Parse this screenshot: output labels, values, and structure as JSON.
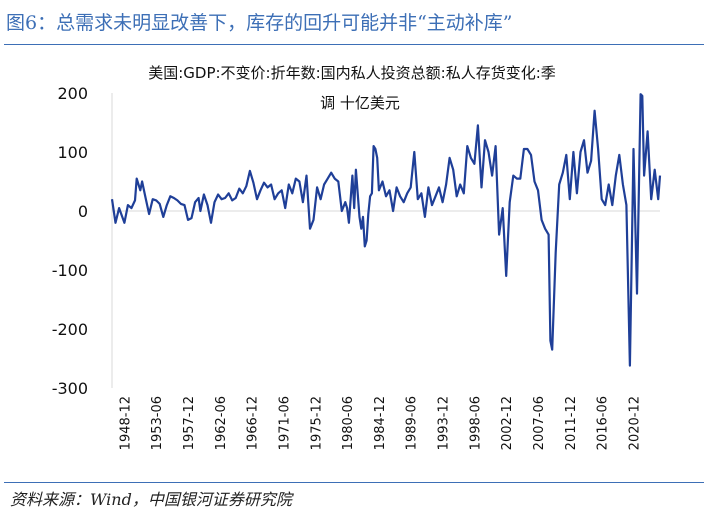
{
  "figure": {
    "title": "图6：总需求未明显改善下，库存的回升可能并非“主动补库”",
    "source": "资料来源：Wind，中国银河证券研究院"
  },
  "chart_data": {
    "type": "line",
    "title": "美国:GDP:不变价:折年数:国内私人投资总额:私人存货变化:季调 十亿美元",
    "title_lines": [
      "美国:GDP:不变价:折年数:国内私人投资总额:私人存货变化:季",
      "调 十亿美元"
    ],
    "xlabel": "",
    "ylabel": "",
    "ylim": [
      -300,
      200
    ],
    "yticks": [
      -300,
      -200,
      -100,
      0,
      100,
      200
    ],
    "xticks": [
      "1948-12",
      "1953-06",
      "1957-12",
      "1962-06",
      "1966-12",
      "1971-06",
      "1975-12",
      "1980-06",
      "1984-12",
      "1989-06",
      "1993-12",
      "1998-06",
      "2002-12",
      "2007-06",
      "2011-12",
      "2016-06",
      "2020-12"
    ],
    "x_range": [
      "1947-03",
      "2024-09"
    ],
    "grid": false,
    "legend": "none",
    "line_color": "#1f3f98",
    "series": [
      {
        "points": [
          [
            "1947-03",
            20
          ],
          [
            "1947-09",
            -20
          ],
          [
            "1948-03",
            5
          ],
          [
            "1948-12",
            -20
          ],
          [
            "1949-06",
            10
          ],
          [
            "1949-12",
            5
          ],
          [
            "1950-06",
            18
          ],
          [
            "1950-09",
            55
          ],
          [
            "1951-03",
            35
          ],
          [
            "1951-06",
            50
          ],
          [
            "1951-12",
            22
          ],
          [
            "1952-06",
            -5
          ],
          [
            "1952-12",
            20
          ],
          [
            "1953-06",
            18
          ],
          [
            "1953-12",
            12
          ],
          [
            "1954-06",
            -10
          ],
          [
            "1954-12",
            10
          ],
          [
            "1955-06",
            25
          ],
          [
            "1955-12",
            22
          ],
          [
            "1956-06",
            18
          ],
          [
            "1956-12",
            12
          ],
          [
            "1957-06",
            10
          ],
          [
            "1957-12",
            -15
          ],
          [
            "1958-06",
            -12
          ],
          [
            "1958-12",
            15
          ],
          [
            "1959-06",
            22
          ],
          [
            "1959-09",
            0
          ],
          [
            "1960-03",
            28
          ],
          [
            "1960-09",
            10
          ],
          [
            "1961-03",
            -20
          ],
          [
            "1961-09",
            15
          ],
          [
            "1962-03",
            28
          ],
          [
            "1962-09",
            20
          ],
          [
            "1963-03",
            22
          ],
          [
            "1963-09",
            30
          ],
          [
            "1964-03",
            18
          ],
          [
            "1964-09",
            22
          ],
          [
            "1965-03",
            38
          ],
          [
            "1965-09",
            30
          ],
          [
            "1966-03",
            42
          ],
          [
            "1966-09",
            68
          ],
          [
            "1967-03",
            48
          ],
          [
            "1967-09",
            20
          ],
          [
            "1968-03",
            35
          ],
          [
            "1968-09",
            48
          ],
          [
            "1969-03",
            40
          ],
          [
            "1969-09",
            45
          ],
          [
            "1970-03",
            20
          ],
          [
            "1970-09",
            30
          ],
          [
            "1971-03",
            35
          ],
          [
            "1971-09",
            5
          ],
          [
            "1972-03",
            45
          ],
          [
            "1972-09",
            30
          ],
          [
            "1973-03",
            55
          ],
          [
            "1973-09",
            50
          ],
          [
            "1974-03",
            15
          ],
          [
            "1974-09",
            60
          ],
          [
            "1975-03",
            -30
          ],
          [
            "1975-09",
            -15
          ],
          [
            "1976-03",
            40
          ],
          [
            "1976-09",
            20
          ],
          [
            "1977-03",
            45
          ],
          [
            "1977-09",
            55
          ],
          [
            "1978-03",
            65
          ],
          [
            "1978-09",
            55
          ],
          [
            "1979-03",
            50
          ],
          [
            "1979-09",
            0
          ],
          [
            "1980-03",
            15
          ],
          [
            "1980-06",
            5
          ],
          [
            "1980-09",
            -20
          ],
          [
            "1981-03",
            60
          ],
          [
            "1981-06",
            5
          ],
          [
            "1981-09",
            70
          ],
          [
            "1982-03",
            -10
          ],
          [
            "1982-06",
            -30
          ],
          [
            "1982-09",
            -10
          ],
          [
            "1982-12",
            -60
          ],
          [
            "1983-03",
            -50
          ],
          [
            "1983-06",
            -5
          ],
          [
            "1983-09",
            25
          ],
          [
            "1983-12",
            30
          ],
          [
            "1984-03",
            110
          ],
          [
            "1984-06",
            105
          ],
          [
            "1984-09",
            90
          ],
          [
            "1984-12",
            35
          ],
          [
            "1985-06",
            50
          ],
          [
            "1985-12",
            25
          ],
          [
            "1986-06",
            35
          ],
          [
            "1986-12",
            0
          ],
          [
            "1987-06",
            40
          ],
          [
            "1987-12",
            25
          ],
          [
            "1988-06",
            15
          ],
          [
            "1988-12",
            30
          ],
          [
            "1989-06",
            40
          ],
          [
            "1989-12",
            100
          ],
          [
            "1990-06",
            20
          ],
          [
            "1990-12",
            30
          ],
          [
            "1991-06",
            -10
          ],
          [
            "1991-12",
            40
          ],
          [
            "1992-06",
            10
          ],
          [
            "1992-12",
            25
          ],
          [
            "1993-06",
            40
          ],
          [
            "1993-12",
            15
          ],
          [
            "1994-06",
            45
          ],
          [
            "1994-12",
            90
          ],
          [
            "1995-06",
            70
          ],
          [
            "1995-12",
            25
          ],
          [
            "1996-06",
            45
          ],
          [
            "1996-12",
            30
          ],
          [
            "1997-06",
            110
          ],
          [
            "1997-12",
            90
          ],
          [
            "1998-06",
            80
          ],
          [
            "1998-12",
            145
          ],
          [
            "1999-06",
            40
          ],
          [
            "1999-12",
            120
          ],
          [
            "2000-06",
            100
          ],
          [
            "2000-12",
            60
          ],
          [
            "2001-06",
            110
          ],
          [
            "2001-12",
            -40
          ],
          [
            "2002-06",
            5
          ],
          [
            "2002-12",
            -110
          ],
          [
            "2003-06",
            15
          ],
          [
            "2003-12",
            60
          ],
          [
            "2004-06",
            55
          ],
          [
            "2004-12",
            55
          ],
          [
            "2005-06",
            105
          ],
          [
            "2005-12",
            105
          ],
          [
            "2006-06",
            95
          ],
          [
            "2006-12",
            50
          ],
          [
            "2007-06",
            35
          ],
          [
            "2007-12",
            -15
          ],
          [
            "2008-06",
            -30
          ],
          [
            "2008-12",
            -40
          ],
          [
            "2009-03",
            -220
          ],
          [
            "2009-06",
            -235
          ],
          [
            "2009-12",
            -70
          ],
          [
            "2010-06",
            45
          ],
          [
            "2010-12",
            65
          ],
          [
            "2011-06",
            95
          ],
          [
            "2011-12",
            20
          ],
          [
            "2012-06",
            100
          ],
          [
            "2012-12",
            30
          ],
          [
            "2013-06",
            100
          ],
          [
            "2013-12",
            120
          ],
          [
            "2014-06",
            65
          ],
          [
            "2014-12",
            85
          ],
          [
            "2015-06",
            170
          ],
          [
            "2015-12",
            105
          ],
          [
            "2016-06",
            20
          ],
          [
            "2016-12",
            10
          ],
          [
            "2017-06",
            45
          ],
          [
            "2017-12",
            10
          ],
          [
            "2018-06",
            60
          ],
          [
            "2018-12",
            95
          ],
          [
            "2019-06",
            45
          ],
          [
            "2019-12",
            10
          ],
          [
            "2020-06",
            -262
          ],
          [
            "2020-12",
            105
          ],
          [
            "2021-06",
            -140
          ],
          [
            "2021-12",
            198
          ],
          [
            "2022-03",
            195
          ],
          [
            "2022-06",
            60
          ],
          [
            "2022-12",
            135
          ],
          [
            "2023-06",
            20
          ],
          [
            "2023-12",
            70
          ],
          [
            "2024-06",
            20
          ],
          [
            "2024-09",
            60
          ]
        ]
      }
    ]
  }
}
